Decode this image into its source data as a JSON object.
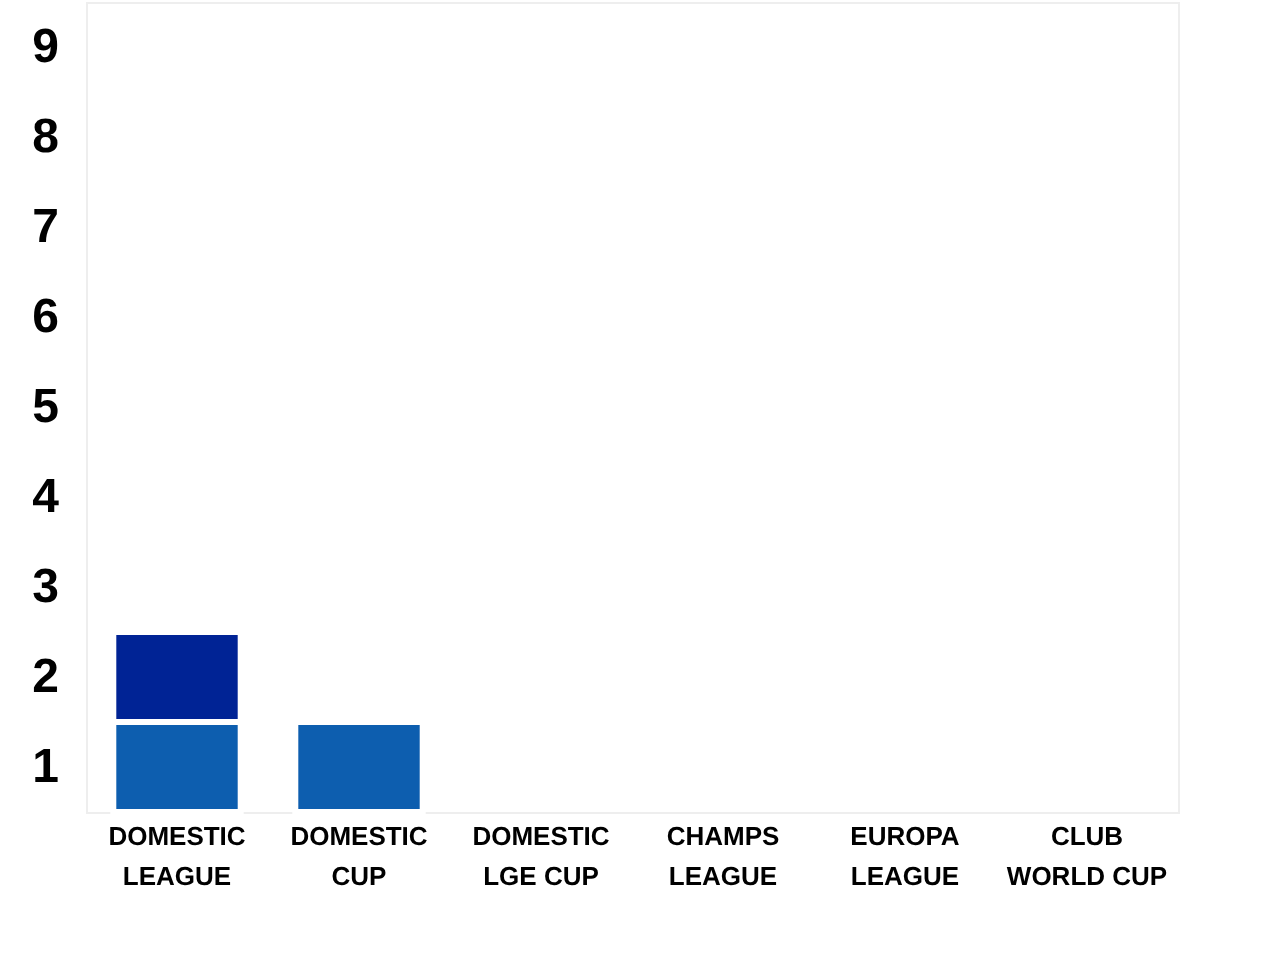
{
  "chart_data": {
    "type": "bar",
    "stacked": true,
    "categories": [
      "DOMESTIC LEAGUE",
      "DOMESTIC CUP",
      "DOMESTIC LGE CUP",
      "CHAMPS LEAGUE",
      "EUROPA LEAGUE",
      "CLUB WORLD CUP"
    ],
    "series": [
      {
        "color": "#0d5eaf",
        "values": [
          1,
          1,
          0,
          0,
          0,
          0
        ]
      },
      {
        "color": "#002395",
        "values": [
          1,
          0,
          0,
          0,
          0,
          0
        ]
      }
    ],
    "ylim": [
      0,
      9
    ],
    "yticks": [
      {
        "value": 0.5,
        "label": "1"
      },
      {
        "value": 1.5,
        "label": "2"
      },
      {
        "value": 2.5,
        "label": "3"
      },
      {
        "value": 3.5,
        "label": "4"
      },
      {
        "value": 4.5,
        "label": "5"
      },
      {
        "value": 5.5,
        "label": "6"
      },
      {
        "value": 6.5,
        "label": "7"
      },
      {
        "value": 7.5,
        "label": "8"
      },
      {
        "value": 8.5,
        "label": "9"
      }
    ],
    "grid": false
  }
}
